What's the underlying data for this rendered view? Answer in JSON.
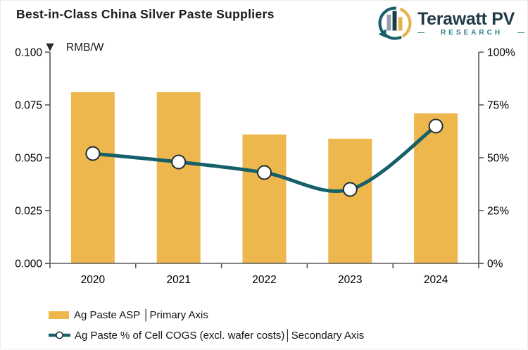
{
  "title": "Best-in-Class China Silver Paste Suppliers",
  "logo": {
    "name": "Terawatt PV",
    "subtitle": "RESEARCH",
    "dash": "—"
  },
  "chart_data": {
    "type": "combo",
    "categories": [
      "2020",
      "2021",
      "2022",
      "2023",
      "2024"
    ],
    "series": [
      {
        "name": "Ag Paste ASP",
        "type": "bar",
        "axis": "primary",
        "color": "#EDB74D",
        "values": [
          0.081,
          0.081,
          0.061,
          0.059,
          0.071
        ]
      },
      {
        "name": "Ag Paste % of Cell COGS (excl. wafer costs)",
        "type": "line",
        "axis": "secondary",
        "color": "#166069",
        "marker": {
          "fill": "#FFFFFF",
          "stroke": "#1F2B35"
        },
        "values": [
          52,
          48,
          43,
          35,
          65
        ]
      }
    ],
    "primary_axis": {
      "unit_label": "RMB/W",
      "min": 0,
      "max": 0.1,
      "ticks": [
        "0.000",
        "0.025",
        "0.050",
        "0.075",
        "0.100"
      ],
      "tick_values": [
        0,
        0.025,
        0.05,
        0.075,
        0.1
      ]
    },
    "secondary_axis": {
      "min": 0,
      "max": 100,
      "ticks": [
        "0%",
        "25%",
        "50%",
        "75%",
        "100%"
      ],
      "tick_values": [
        0,
        25,
        50,
        75,
        100
      ]
    },
    "axis_pointer": "▼",
    "axis_color": "#595959",
    "grid": "off",
    "legend": [
      {
        "label": "Ag Paste ASP │Primary Axis",
        "swatch": "bar"
      },
      {
        "label": "Ag Paste % of Cell COGS (excl. wafer costs)│Secondary Axis",
        "swatch": "line"
      }
    ]
  }
}
